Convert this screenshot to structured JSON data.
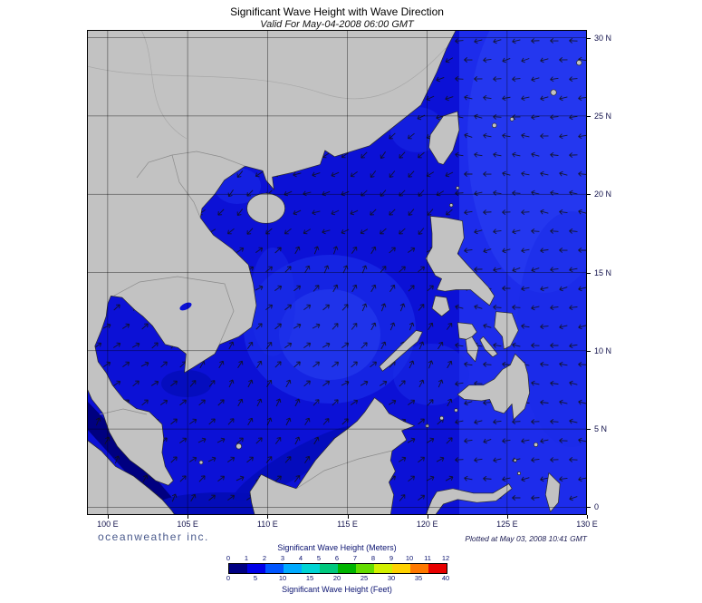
{
  "header": {
    "title": "Significant Wave Height with Wave Direction",
    "subtitle": "Valid For May-04-2008 06:00 GMT"
  },
  "footer": {
    "branding": "oceanweather inc.",
    "plotted": "Plotted at May 03, 2008 10:41 GMT"
  },
  "axes": {
    "x_ticks": [
      "100 E",
      "105 E",
      "110 E",
      "115 E",
      "120 E",
      "125 E",
      "130 E"
    ],
    "y_ticks": [
      "30 N",
      "25 N",
      "20 N",
      "15 N",
      "10 N",
      "5 N",
      "0"
    ]
  },
  "legend": {
    "meters_label": "Significant Wave Height (Meters)",
    "feet_label": "Significant Wave Height (Feet)",
    "meters_ticks": [
      "0",
      "1",
      "2",
      "3",
      "4",
      "5",
      "6",
      "7",
      "8",
      "9",
      "10",
      "11",
      "12"
    ],
    "feet_ticks": [
      "0",
      "5",
      "10",
      "15",
      "20",
      "25",
      "30",
      "35",
      "40"
    ],
    "colors": [
      "#000082",
      "#0000e8",
      "#0055ff",
      "#00aaff",
      "#00d4d4",
      "#00c87d",
      "#00b400",
      "#64dc00",
      "#d2f000",
      "#ffd200",
      "#ff7800",
      "#e80000"
    ]
  },
  "map": {
    "land_color": "#c2c2c2",
    "coast_color": "#2a2a2a",
    "border_color": "#8c8c8c",
    "sea_base": "#0c11d6",
    "sea_pacific": "#1d2ceb",
    "patch_light_1": "#1a2ce8",
    "patch_light_2": "#2a42f2",
    "patch_dark": "#000080",
    "patch_dark_2": "#040cb8",
    "grid_color": "#000000",
    "arrow_color": "#101010"
  },
  "chart_data": {
    "type": "heatmap",
    "title": "Significant Wave Height with Wave Direction",
    "valid_time": "May-04-2008 06:00 GMT",
    "plotted_time": "May 03, 2008 10:41 GMT",
    "region": {
      "lon_ticks_E": [
        100,
        105,
        110,
        115,
        120,
        125,
        130
      ],
      "lat_ticks_N": [
        0,
        5,
        10,
        15,
        20,
        25,
        30
      ]
    },
    "scale_meters": [
      0,
      1,
      2,
      3,
      4,
      5,
      6,
      7,
      8,
      9,
      10,
      11,
      12
    ],
    "scale_feet": [
      0,
      5,
      10,
      15,
      20,
      25,
      30,
      35,
      40
    ],
    "scale_colors": [
      "#000082",
      "#0000e8",
      "#0055ff",
      "#00aaff",
      "#00d4d4",
      "#00c87d",
      "#00b400",
      "#64dc00",
      "#d2f000",
      "#ffd200",
      "#ff7800",
      "#e80000"
    ]
  }
}
